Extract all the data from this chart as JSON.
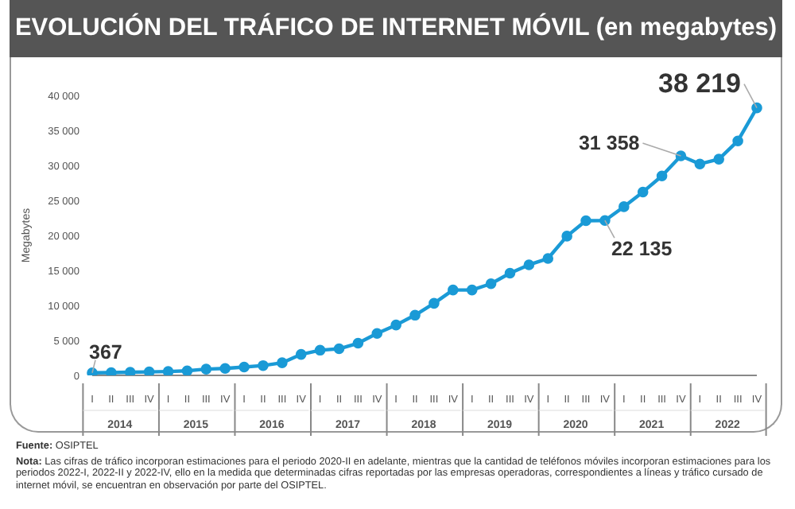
{
  "chart_data": {
    "type": "line",
    "title": "EVOLUCIÓN DEL TRÁFICO DE INTERNET MÓVIL (en megabytes)",
    "ylabel": "Megabytes",
    "categories": [
      "I",
      "II",
      "III",
      "IV",
      "I",
      "II",
      "III",
      "IV",
      "I",
      "II",
      "III",
      "IV",
      "I",
      "II",
      "III",
      "IV",
      "I",
      "II",
      "III",
      "IV",
      "I",
      "II",
      "III",
      "IV",
      "I",
      "II",
      "III",
      "IV",
      "I",
      "II",
      "III",
      "IV",
      "I",
      "II",
      "III",
      "IV"
    ],
    "series": [
      {
        "color": "#1a9ad6",
        "values": [
          367,
          400,
          450,
          500,
          550,
          650,
          900,
          1000,
          1200,
          1400,
          1800,
          3000,
          3600,
          3800,
          4600,
          6000,
          7200,
          8600,
          10300,
          12200,
          12200,
          13100,
          14600,
          15800,
          16700,
          19900,
          22100,
          22135,
          24100,
          26200,
          28500,
          31358,
          30200,
          30900,
          33500,
          38219
        ],
        "value_labels": [
          "367",
          null,
          null,
          null,
          null,
          null,
          null,
          null,
          null,
          null,
          null,
          null,
          null,
          null,
          null,
          null,
          null,
          null,
          null,
          null,
          null,
          null,
          null,
          null,
          null,
          null,
          null,
          "22 135",
          null,
          null,
          null,
          "31 358",
          null,
          null,
          null,
          "38 219"
        ]
      }
    ],
    "ylim": [
      0,
      40000
    ],
    "yticks": [
      0,
      {
        "value": 5000,
        "label": "5 000"
      },
      {
        "value": 10000,
        "label": "10 000"
      },
      {
        "value": 15000,
        "label": "15 000"
      },
      {
        "value": 20000,
        "label": "20 000"
      },
      {
        "value": 25000,
        "label": "25 000"
      },
      {
        "value": 30000,
        "label": "30 000"
      },
      {
        "value": 35000,
        "label": "35 000"
      },
      {
        "value": 40000,
        "label": "40 000"
      }
    ],
    "marker": "circle",
    "line_style": "solid",
    "grid": false,
    "legend": false,
    "annotations": [
      "2014",
      "2015",
      "2016",
      "2017",
      "2018",
      "2019",
      "2020",
      "2021",
      "2022",
      "Fuente: OSIPTEL",
      "Nota: Las cifras de tráfico incorporan estimaciones para el periodo 2020-II en adelante, mientras que la cantidad de teléfonos móviles incorporan estimaciones para los periodos 2022-I, 2022-II y 2022-IV, ello en la medida que determinadas cifras reportadas por las empresas operadoras, correspondientes a líneas y tráfico cursado de internet móvil, se encuentran en observación por parte del OSIPTEL."
    ]
  }
}
